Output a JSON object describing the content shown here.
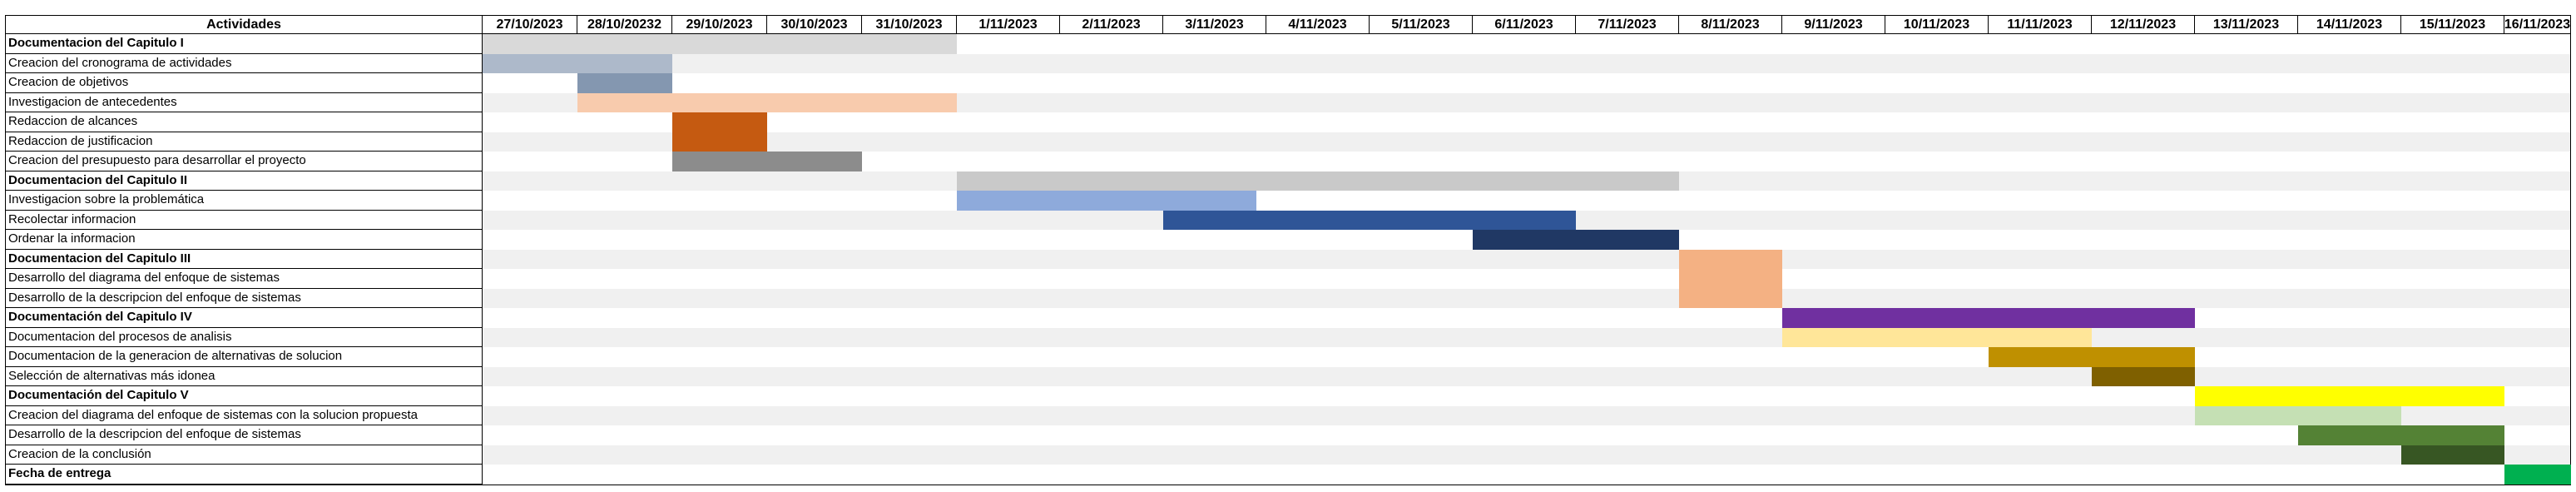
{
  "header": {
    "activity_label": "Actividades",
    "dates": [
      "27/10/2023",
      "28/10/20232",
      "29/10/2023",
      "30/10/2023",
      "31/10/2023",
      "1/11/2023",
      "2/11/2023",
      "3/11/2023",
      "4/11/2023",
      "5/11/2023",
      "6/11/2023",
      "7/11/2023",
      "8/11/2023",
      "9/11/2023",
      "10/11/2023",
      "11/11/2023",
      "12/11/2023",
      "13/11/2023",
      "14/11/2023",
      "15/11/2023",
      "16/11/2023"
    ]
  },
  "activities": [
    {
      "label": "Documentacion del Capitulo I",
      "bold": true,
      "start": 0,
      "end": 5,
      "color": "#d9d9d9"
    },
    {
      "label": "Creacion del cronograma de actividades",
      "bold": false,
      "start": 0,
      "end": 2,
      "color": "#adb9ca"
    },
    {
      "label": "Creacion de objetivos",
      "bold": false,
      "start": 1,
      "end": 2,
      "color": "#8497b0"
    },
    {
      "label": "Investigacion de antecedentes",
      "bold": false,
      "start": 1,
      "end": 5,
      "color": "#f8cbad"
    },
    {
      "label": "Redaccion de alcances",
      "bold": false,
      "start": 2,
      "end": 3,
      "color": "#c55a11"
    },
    {
      "label": "Redaccion de justificacion",
      "bold": false,
      "start": 2,
      "end": 3,
      "color": "#c55a11"
    },
    {
      "label": "Creacion del presupuesto para desarrollar el proyecto",
      "bold": false,
      "start": 2,
      "end": 4,
      "color": "#8c8c8c"
    },
    {
      "label": "Documentacion del Capitulo II",
      "bold": true,
      "start": 5,
      "end": 12,
      "color": "#c9c9c9"
    },
    {
      "label": "Investigacion sobre la problemática",
      "bold": false,
      "start": 5,
      "end": 7.9,
      "color": "#8eaadb"
    },
    {
      "label": "Recolectar informacion",
      "bold": false,
      "start": 7,
      "end": 11,
      "color": "#2f5597"
    },
    {
      "label": "Ordenar la informacion",
      "bold": false,
      "start": 10,
      "end": 12,
      "color": "#203864"
    },
    {
      "label": "Documentacion del Capitulo III",
      "bold": true,
      "start": 12,
      "end": 13,
      "color": "#f4b183"
    },
    {
      "label": "Desarrollo del diagrama del enfoque de sistemas",
      "bold": false,
      "start": 12,
      "end": 13,
      "color": "#f4b183"
    },
    {
      "label": "Desarrollo de la descripcion del enfoque de sistemas",
      "bold": false,
      "start": 12,
      "end": 13,
      "color": "#f4b183"
    },
    {
      "label": "Documentación del Capitulo IV",
      "bold": true,
      "start": 13,
      "end": 17,
      "color": "#7030a0"
    },
    {
      "label": "Documentacion del procesos de analisis",
      "bold": false,
      "start": 13,
      "end": 16,
      "color": "#ffe699"
    },
    {
      "label": "Documentacion de la generacion de alternativas de solucion",
      "bold": false,
      "start": 15,
      "end": 17,
      "color": "#bf9000"
    },
    {
      "label": "Selección de alternativas más idonea",
      "bold": false,
      "start": 16,
      "end": 17,
      "color": "#7f6000"
    },
    {
      "label": "Documentación del Capitulo V",
      "bold": true,
      "start": 17,
      "end": 20,
      "color": "#ffff00"
    },
    {
      "label": "Creacion del diagrama del enfoque de sistemas con la solucion propuesta",
      "bold": false,
      "start": 17,
      "end": 19,
      "color": "#c5e0b4"
    },
    {
      "label": "Desarrollo de la descripcion del enfoque de sistemas",
      "bold": false,
      "start": 18,
      "end": 20,
      "color": "#548235"
    },
    {
      "label": "Creacion de la conclusión",
      "bold": false,
      "start": 19,
      "end": 20,
      "color": "#375623"
    },
    {
      "label": "Fecha de entrega",
      "bold": true,
      "start": 20,
      "end": 21,
      "color": "#00b050"
    }
  ]
}
